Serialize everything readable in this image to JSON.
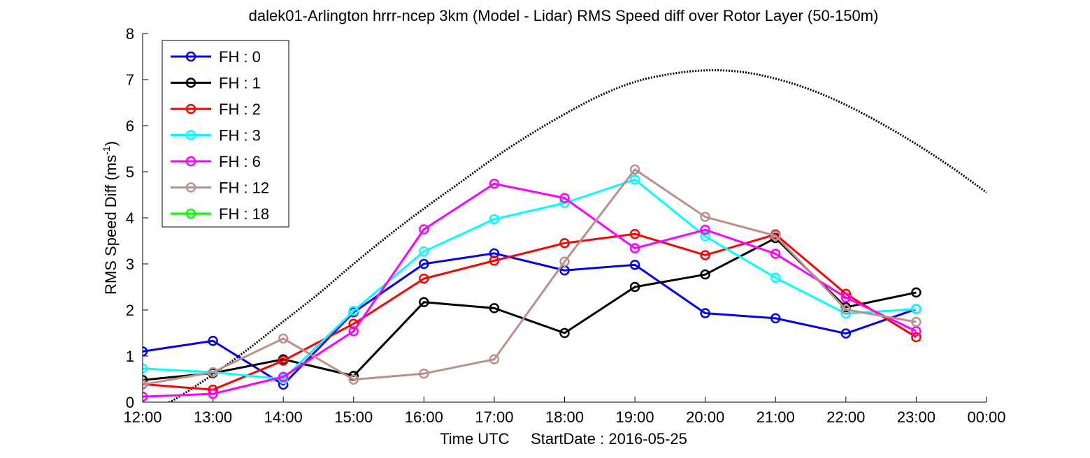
{
  "chart_data": {
    "type": "line",
    "title": "dalek01-Arlington hrrr-ncep 3km (Model - Lidar) RMS Speed diff over Rotor Layer (50-150m)",
    "xlabel": "Time UTC     StartDate : 2016-05-25",
    "ylabel_main": "RMS Speed Diff (ms",
    "ylabel_sup": "-1",
    "ylabel_close": ")",
    "x_ticks": [
      "12:00",
      "13:00",
      "14:00",
      "15:00",
      "16:00",
      "17:00",
      "18:00",
      "19:00",
      "20:00",
      "21:00",
      "22:00",
      "23:00",
      "00:00"
    ],
    "xlim": [
      0,
      12
    ],
    "y_ticks": [
      "0",
      "1",
      "2",
      "3",
      "4",
      "5",
      "6",
      "7",
      "8"
    ],
    "ylim": [
      0,
      8
    ],
    "grid": false,
    "legend_position": "top-left",
    "series": [
      {
        "name": "FH : 0",
        "color": "#0000ee",
        "values": [
          1.1,
          1.33,
          0.38,
          1.95,
          3.0,
          3.23,
          2.86,
          2.98,
          1.93,
          1.82,
          1.49,
          2.02
        ]
      },
      {
        "name": "FH : 1",
        "color": "#000000",
        "values": [
          0.48,
          0.63,
          0.93,
          0.57,
          2.17,
          2.04,
          1.5,
          2.5,
          2.77,
          3.56,
          2.06,
          2.38
        ]
      },
      {
        "name": "FH : 2",
        "color": "#ff0000",
        "values": [
          0.39,
          0.27,
          0.9,
          1.7,
          2.68,
          3.07,
          3.45,
          3.65,
          3.19,
          3.64,
          2.35,
          1.41
        ]
      },
      {
        "name": "FH : 3",
        "color": "#00ffff",
        "values": [
          0.73,
          0.65,
          0.5,
          1.98,
          3.27,
          3.97,
          4.32,
          4.83,
          3.6,
          2.7,
          1.92,
          2.02
        ]
      },
      {
        "name": "FH : 6",
        "color": "#ff00ff",
        "values": [
          0.12,
          0.18,
          0.55,
          1.54,
          3.75,
          4.74,
          4.43,
          3.34,
          3.74,
          3.22,
          2.27,
          1.54
        ]
      },
      {
        "name": "FH : 12",
        "color": "#bc8f8f",
        "values": [
          0.38,
          0.65,
          1.38,
          0.49,
          0.62,
          0.93,
          3.05,
          5.05,
          4.02,
          3.61,
          2.01,
          1.74
        ]
      },
      {
        "name": "FH : 18",
        "color": "#00ff00",
        "values": []
      }
    ],
    "reference_curve": {
      "style": "dotted",
      "color": "#000000",
      "x": [
        0.0,
        0.25,
        0.5,
        1.0,
        1.5,
        2.0,
        2.5,
        3.0,
        3.5,
        4.0,
        4.5,
        5.0,
        5.5,
        6.0,
        6.5,
        7.0,
        7.5,
        8.0,
        8.5,
        9.0,
        9.5,
        10.0,
        10.5,
        11.0,
        11.5,
        12.0
      ],
      "y": [
        -0.35,
        -0.1,
        0.1,
        0.6,
        1.15,
        1.75,
        2.35,
        3.0,
        3.62,
        4.2,
        4.75,
        5.3,
        5.8,
        6.25,
        6.65,
        6.95,
        7.12,
        7.2,
        7.17,
        7.02,
        6.78,
        6.45,
        6.05,
        5.6,
        5.1,
        4.55
      ]
    }
  }
}
